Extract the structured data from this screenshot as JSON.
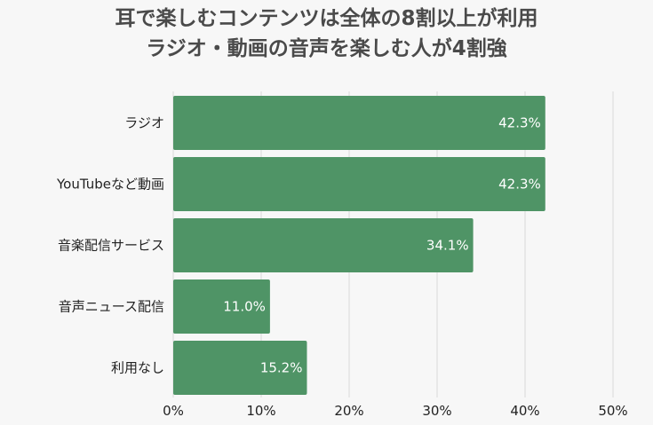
{
  "chart_data": {
    "type": "bar",
    "orientation": "horizontal",
    "title": "耳で楽しむコンテンツは全体の8割以上が利用",
    "subtitle": "ラジオ・動画の音声を楽しむ人が4割強",
    "categories": [
      "ラジオ",
      "YouTubeなど動画",
      "音楽配信サービス",
      "音声ニュース配信",
      "利用なし"
    ],
    "values": [
      42.3,
      42.3,
      34.1,
      11.0,
      15.2
    ],
    "data_labels": [
      "42.3%",
      "42.3%",
      "34.1%",
      "11.0%",
      "15.2%"
    ],
    "xlim": [
      0,
      50
    ],
    "xticks": [
      0,
      10,
      20,
      30,
      40,
      50
    ],
    "xtick_labels": [
      "0%",
      "10%",
      "20%",
      "30%",
      "40%",
      "50%"
    ],
    "xlabel": "",
    "ylabel": "",
    "grid": "vertical",
    "legend": "none",
    "bar_color": "#4f9466",
    "grid_color": "#d9d9d9",
    "background": "#f7f7f7"
  }
}
